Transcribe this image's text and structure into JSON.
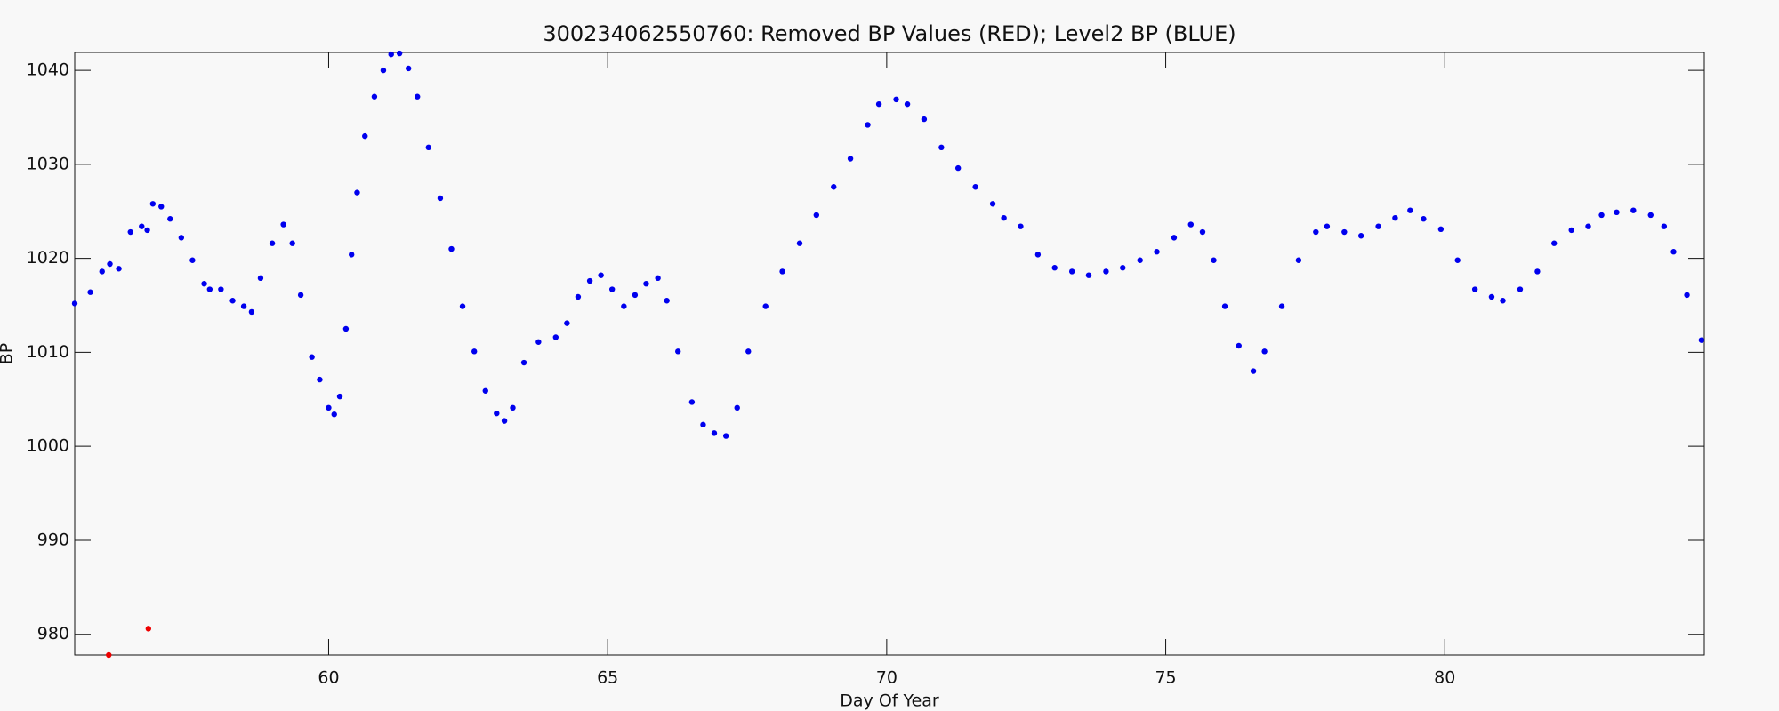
{
  "chart_data": {
    "type": "scatter",
    "title": "300234062550760: Removed BP Values (RED); Level2 BP (BLUE)",
    "x_label": "Day Of Year",
    "y_label": "BP",
    "xlim": [
      55.45,
      84.65
    ],
    "xticks": [
      60,
      65,
      70,
      75,
      80
    ],
    "ylim": [
      977.8,
      1041.9
    ],
    "yticks": [
      980,
      990,
      1000,
      1010,
      1020,
      1030,
      1040
    ],
    "series": [
      {
        "color": "#0000ee",
        "x": [
          55.45,
          55.73,
          55.94,
          56.08,
          56.24,
          56.45,
          56.65,
          56.75,
          56.85,
          57.0,
          57.16,
          57.36,
          57.56,
          57.77,
          57.87,
          58.07,
          58.28,
          58.48,
          58.62,
          58.78,
          58.99,
          59.19,
          59.35,
          59.5,
          59.7,
          59.84,
          60.0,
          60.1,
          60.2,
          60.31,
          60.41,
          60.51,
          60.65,
          60.82,
          60.98,
          61.12,
          61.27,
          61.43,
          61.59,
          61.79,
          62.0,
          62.2,
          62.4,
          62.61,
          62.81,
          63.01,
          63.15,
          63.3,
          63.5,
          63.76,
          64.07,
          64.27,
          64.47,
          64.68,
          64.88,
          65.08,
          65.29,
          65.49,
          65.69,
          65.9,
          66.06,
          66.26,
          66.51,
          66.71,
          66.91,
          67.12,
          67.32,
          67.52,
          67.83,
          68.13,
          68.44,
          68.74,
          69.05,
          69.35,
          69.66,
          69.86,
          70.17,
          70.37,
          70.67,
          70.98,
          71.28,
          71.59,
          71.9,
          72.1,
          72.4,
          72.71,
          73.01,
          73.32,
          73.62,
          73.93,
          74.23,
          74.54,
          74.84,
          75.15,
          75.45,
          75.66,
          75.86,
          76.06,
          76.31,
          76.57,
          76.77,
          77.08,
          77.38,
          77.69,
          77.89,
          78.2,
          78.5,
          78.81,
          79.11,
          79.38,
          79.62,
          79.93,
          80.23,
          80.54,
          80.84,
          81.04,
          81.35,
          81.66,
          81.96,
          82.27,
          82.57,
          82.81,
          83.08,
          83.38,
          83.69,
          83.93,
          84.1,
          84.34,
          84.6
        ],
        "values": [
          1015.2,
          1016.4,
          1018.6,
          1019.4,
          1018.9,
          1022.8,
          1023.4,
          1023.0,
          1025.8,
          1025.5,
          1024.2,
          1022.2,
          1019.8,
          1017.3,
          1016.7,
          1016.7,
          1015.5,
          1014.9,
          1014.3,
          1017.9,
          1021.6,
          1023.6,
          1021.6,
          1016.1,
          1009.5,
          1007.1,
          1004.1,
          1003.4,
          1005.3,
          1012.5,
          1020.4,
          1027.0,
          1033.0,
          1037.2,
          1040.0,
          1041.7,
          1041.8,
          1040.2,
          1037.2,
          1031.8,
          1026.4,
          1021.0,
          1014.9,
          1010.1,
          1005.9,
          1003.5,
          1002.7,
          1004.1,
          1008.9,
          1011.1,
          1011.6,
          1013.1,
          1015.9,
          1017.6,
          1018.2,
          1016.7,
          1014.9,
          1016.1,
          1017.3,
          1017.9,
          1015.5,
          1010.1,
          1004.7,
          1002.3,
          1001.4,
          1001.1,
          1004.1,
          1010.1,
          1014.9,
          1018.6,
          1021.6,
          1024.6,
          1027.6,
          1030.6,
          1034.2,
          1036.4,
          1036.9,
          1036.4,
          1034.8,
          1031.8,
          1029.6,
          1027.6,
          1025.8,
          1024.3,
          1023.4,
          1020.4,
          1019.0,
          1018.6,
          1018.2,
          1018.6,
          1019.0,
          1019.8,
          1020.7,
          1022.2,
          1023.6,
          1022.8,
          1019.8,
          1014.9,
          1010.7,
          1008.0,
          1010.1,
          1014.9,
          1019.8,
          1022.8,
          1023.4,
          1022.8,
          1022.4,
          1023.4,
          1024.3,
          1025.1,
          1024.2,
          1023.1,
          1019.8,
          1016.7,
          1015.9,
          1015.5,
          1016.7,
          1018.6,
          1021.6,
          1023.0,
          1023.4,
          1024.6,
          1024.9,
          1025.1,
          1024.6,
          1023.4,
          1020.7,
          1016.1,
          1011.3
        ]
      },
      {
        "color": "#ee0000",
        "x": [
          56.06,
          56.77
        ],
        "values": [
          977.8,
          980.6
        ]
      }
    ]
  }
}
